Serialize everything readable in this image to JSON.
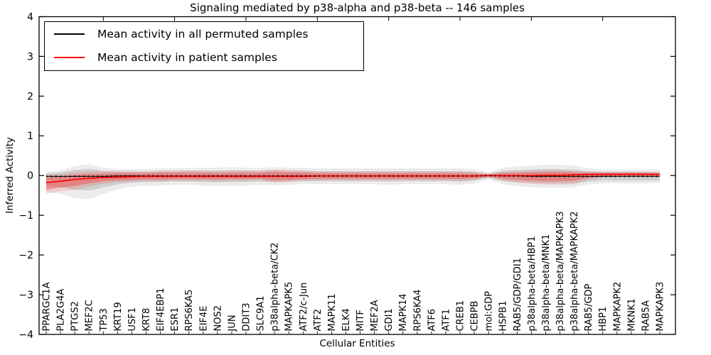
{
  "chart_data": {
    "type": "line",
    "title": "Signaling mediated by p38-alpha and p38-beta -- 146 samples",
    "xlabel": "Cellular Entities",
    "ylabel": "Inferred Activity",
    "ylim": [
      -4,
      4
    ],
    "ytick_labels": [
      "−4",
      "−3",
      "−2",
      "−1",
      "0",
      "1",
      "2",
      "3",
      "4"
    ],
    "ytick_values": [
      -4,
      -3,
      -2,
      -1,
      0,
      1,
      2,
      3,
      4
    ],
    "grid": "off",
    "legend_position": "upper-left",
    "categories": [
      "PPARGC1A",
      "PLA2G4A",
      "PTGS2",
      "MEF2C",
      "TP53",
      "KRT19",
      "USF1",
      "KRT8",
      "EIF4EBP1",
      "ESR1",
      "RPS6KA5",
      "EIF4E",
      "NOS2",
      "JUN",
      "DDIT3",
      "SLC9A1",
      "p38alpha-beta/CK2",
      "MAPKAPK5",
      "ATF2/c-Jun",
      "ATF2",
      "MAPK11",
      "ELK4",
      "MITF",
      "MEF2A",
      "GDI1",
      "MAPK14",
      "RPS6KA4",
      "ATF6",
      "ATF1",
      "CREB1",
      "CEBPB",
      "mol:GDP",
      "HSPB1",
      "RAB5/GDP/GDI1",
      "p38alpha-beta/HBP1",
      "p38alpha-beta/MNK1",
      "p38alpha-beta/MAPKAPK3",
      "p38alpha-beta/MAPKAPK2",
      "RAB5/GDP",
      "HBP1",
      "MAPKAPK2",
      "MKNK1",
      "RAB5A",
      "MAPKAPK3"
    ],
    "series": [
      {
        "name": "Mean activity in all permuted samples",
        "color": "#000000",
        "line_style": "solid-with-dot-markers",
        "band_color": "#8a8a8a",
        "values": [
          -0.02,
          -0.02,
          -0.02,
          -0.02,
          -0.02,
          -0.01,
          -0.01,
          -0.01,
          -0.01,
          -0.01,
          -0.01,
          -0.01,
          -0.01,
          -0.01,
          -0.01,
          -0.01,
          -0.01,
          -0.01,
          -0.01,
          -0.01,
          -0.01,
          -0.01,
          -0.01,
          -0.01,
          -0.01,
          -0.01,
          -0.01,
          -0.01,
          -0.01,
          -0.01,
          -0.01,
          0.0,
          -0.01,
          -0.01,
          -0.02,
          -0.02,
          -0.02,
          -0.02,
          -0.02,
          -0.02,
          -0.02,
          -0.02,
          -0.02,
          -0.02
        ],
        "band_lower": [
          -0.26,
          -0.3,
          -0.36,
          -0.38,
          -0.3,
          -0.22,
          -0.18,
          -0.16,
          -0.16,
          -0.15,
          -0.15,
          -0.16,
          -0.17,
          -0.16,
          -0.16,
          -0.15,
          -0.16,
          -0.15,
          -0.14,
          -0.14,
          -0.14,
          -0.14,
          -0.14,
          -0.14,
          -0.15,
          -0.14,
          -0.14,
          -0.14,
          -0.14,
          -0.15,
          -0.13,
          -0.06,
          -0.14,
          -0.17,
          -0.19,
          -0.2,
          -0.2,
          -0.19,
          -0.15,
          -0.13,
          -0.13,
          -0.13,
          -0.13,
          -0.12
        ],
        "band_upper": [
          0.05,
          0.08,
          0.14,
          0.17,
          0.12,
          0.1,
          0.1,
          0.1,
          0.11,
          0.11,
          0.12,
          0.12,
          0.12,
          0.13,
          0.12,
          0.12,
          0.13,
          0.12,
          0.12,
          0.11,
          0.11,
          0.11,
          0.11,
          0.11,
          0.11,
          0.11,
          0.11,
          0.11,
          0.11,
          0.11,
          0.1,
          0.05,
          0.12,
          0.14,
          0.15,
          0.16,
          0.16,
          0.15,
          0.11,
          0.09,
          0.09,
          0.09,
          0.09,
          0.09
        ]
      },
      {
        "name": "Mean activity in patient samples",
        "color": "#ff0000",
        "line_style": "solid",
        "band_color": "#ff0000",
        "values": [
          -0.18,
          -0.14,
          -0.1,
          -0.07,
          -0.05,
          -0.04,
          -0.03,
          -0.02,
          -0.02,
          -0.02,
          -0.02,
          -0.02,
          -0.02,
          -0.02,
          -0.02,
          -0.02,
          -0.02,
          -0.02,
          -0.02,
          -0.01,
          -0.01,
          -0.01,
          -0.01,
          -0.01,
          -0.01,
          -0.01,
          -0.01,
          -0.01,
          -0.01,
          -0.01,
          -0.01,
          0.0,
          0.0,
          0.0,
          0.0,
          0.01,
          0.01,
          0.02,
          0.03,
          0.03,
          0.03,
          0.03,
          0.03,
          0.03
        ],
        "band_lower": [
          -0.36,
          -0.3,
          -0.26,
          -0.2,
          -0.15,
          -0.12,
          -0.11,
          -0.1,
          -0.1,
          -0.09,
          -0.09,
          -0.09,
          -0.1,
          -0.09,
          -0.09,
          -0.08,
          -0.12,
          -0.11,
          -0.09,
          -0.08,
          -0.08,
          -0.08,
          -0.08,
          -0.08,
          -0.08,
          -0.08,
          -0.08,
          -0.08,
          -0.08,
          -0.09,
          -0.07,
          -0.03,
          -0.08,
          -0.11,
          -0.13,
          -0.14,
          -0.14,
          -0.13,
          -0.06,
          -0.02,
          -0.01,
          -0.01,
          -0.01,
          -0.01
        ],
        "band_upper": [
          -0.05,
          -0.03,
          0.02,
          0.04,
          0.05,
          0.06,
          0.06,
          0.06,
          0.07,
          0.07,
          0.07,
          0.07,
          0.06,
          0.07,
          0.07,
          0.07,
          0.09,
          0.08,
          0.07,
          0.06,
          0.06,
          0.06,
          0.06,
          0.06,
          0.06,
          0.06,
          0.06,
          0.06,
          0.06,
          0.06,
          0.05,
          0.03,
          0.06,
          0.07,
          0.08,
          0.09,
          0.09,
          0.08,
          0.07,
          0.07,
          0.07,
          0.07,
          0.07,
          0.06
        ]
      }
    ]
  }
}
